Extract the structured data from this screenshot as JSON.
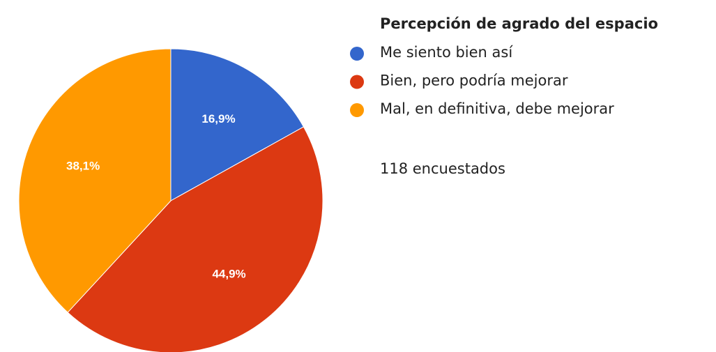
{
  "chart_data": {
    "type": "pie",
    "title": "Percepción de agrado del espacio",
    "categories": [
      "Me siento bien así",
      "Bien, pero podría mejorar",
      "Mal, en definitiva, debe mejorar"
    ],
    "values": [
      16.9,
      44.9,
      38.1
    ],
    "value_labels": [
      "16,9%",
      "44,9%",
      "38,1%"
    ],
    "colors": [
      "#3366cc",
      "#dc3912",
      "#ff9900"
    ],
    "annotation": "118 encuestados"
  }
}
